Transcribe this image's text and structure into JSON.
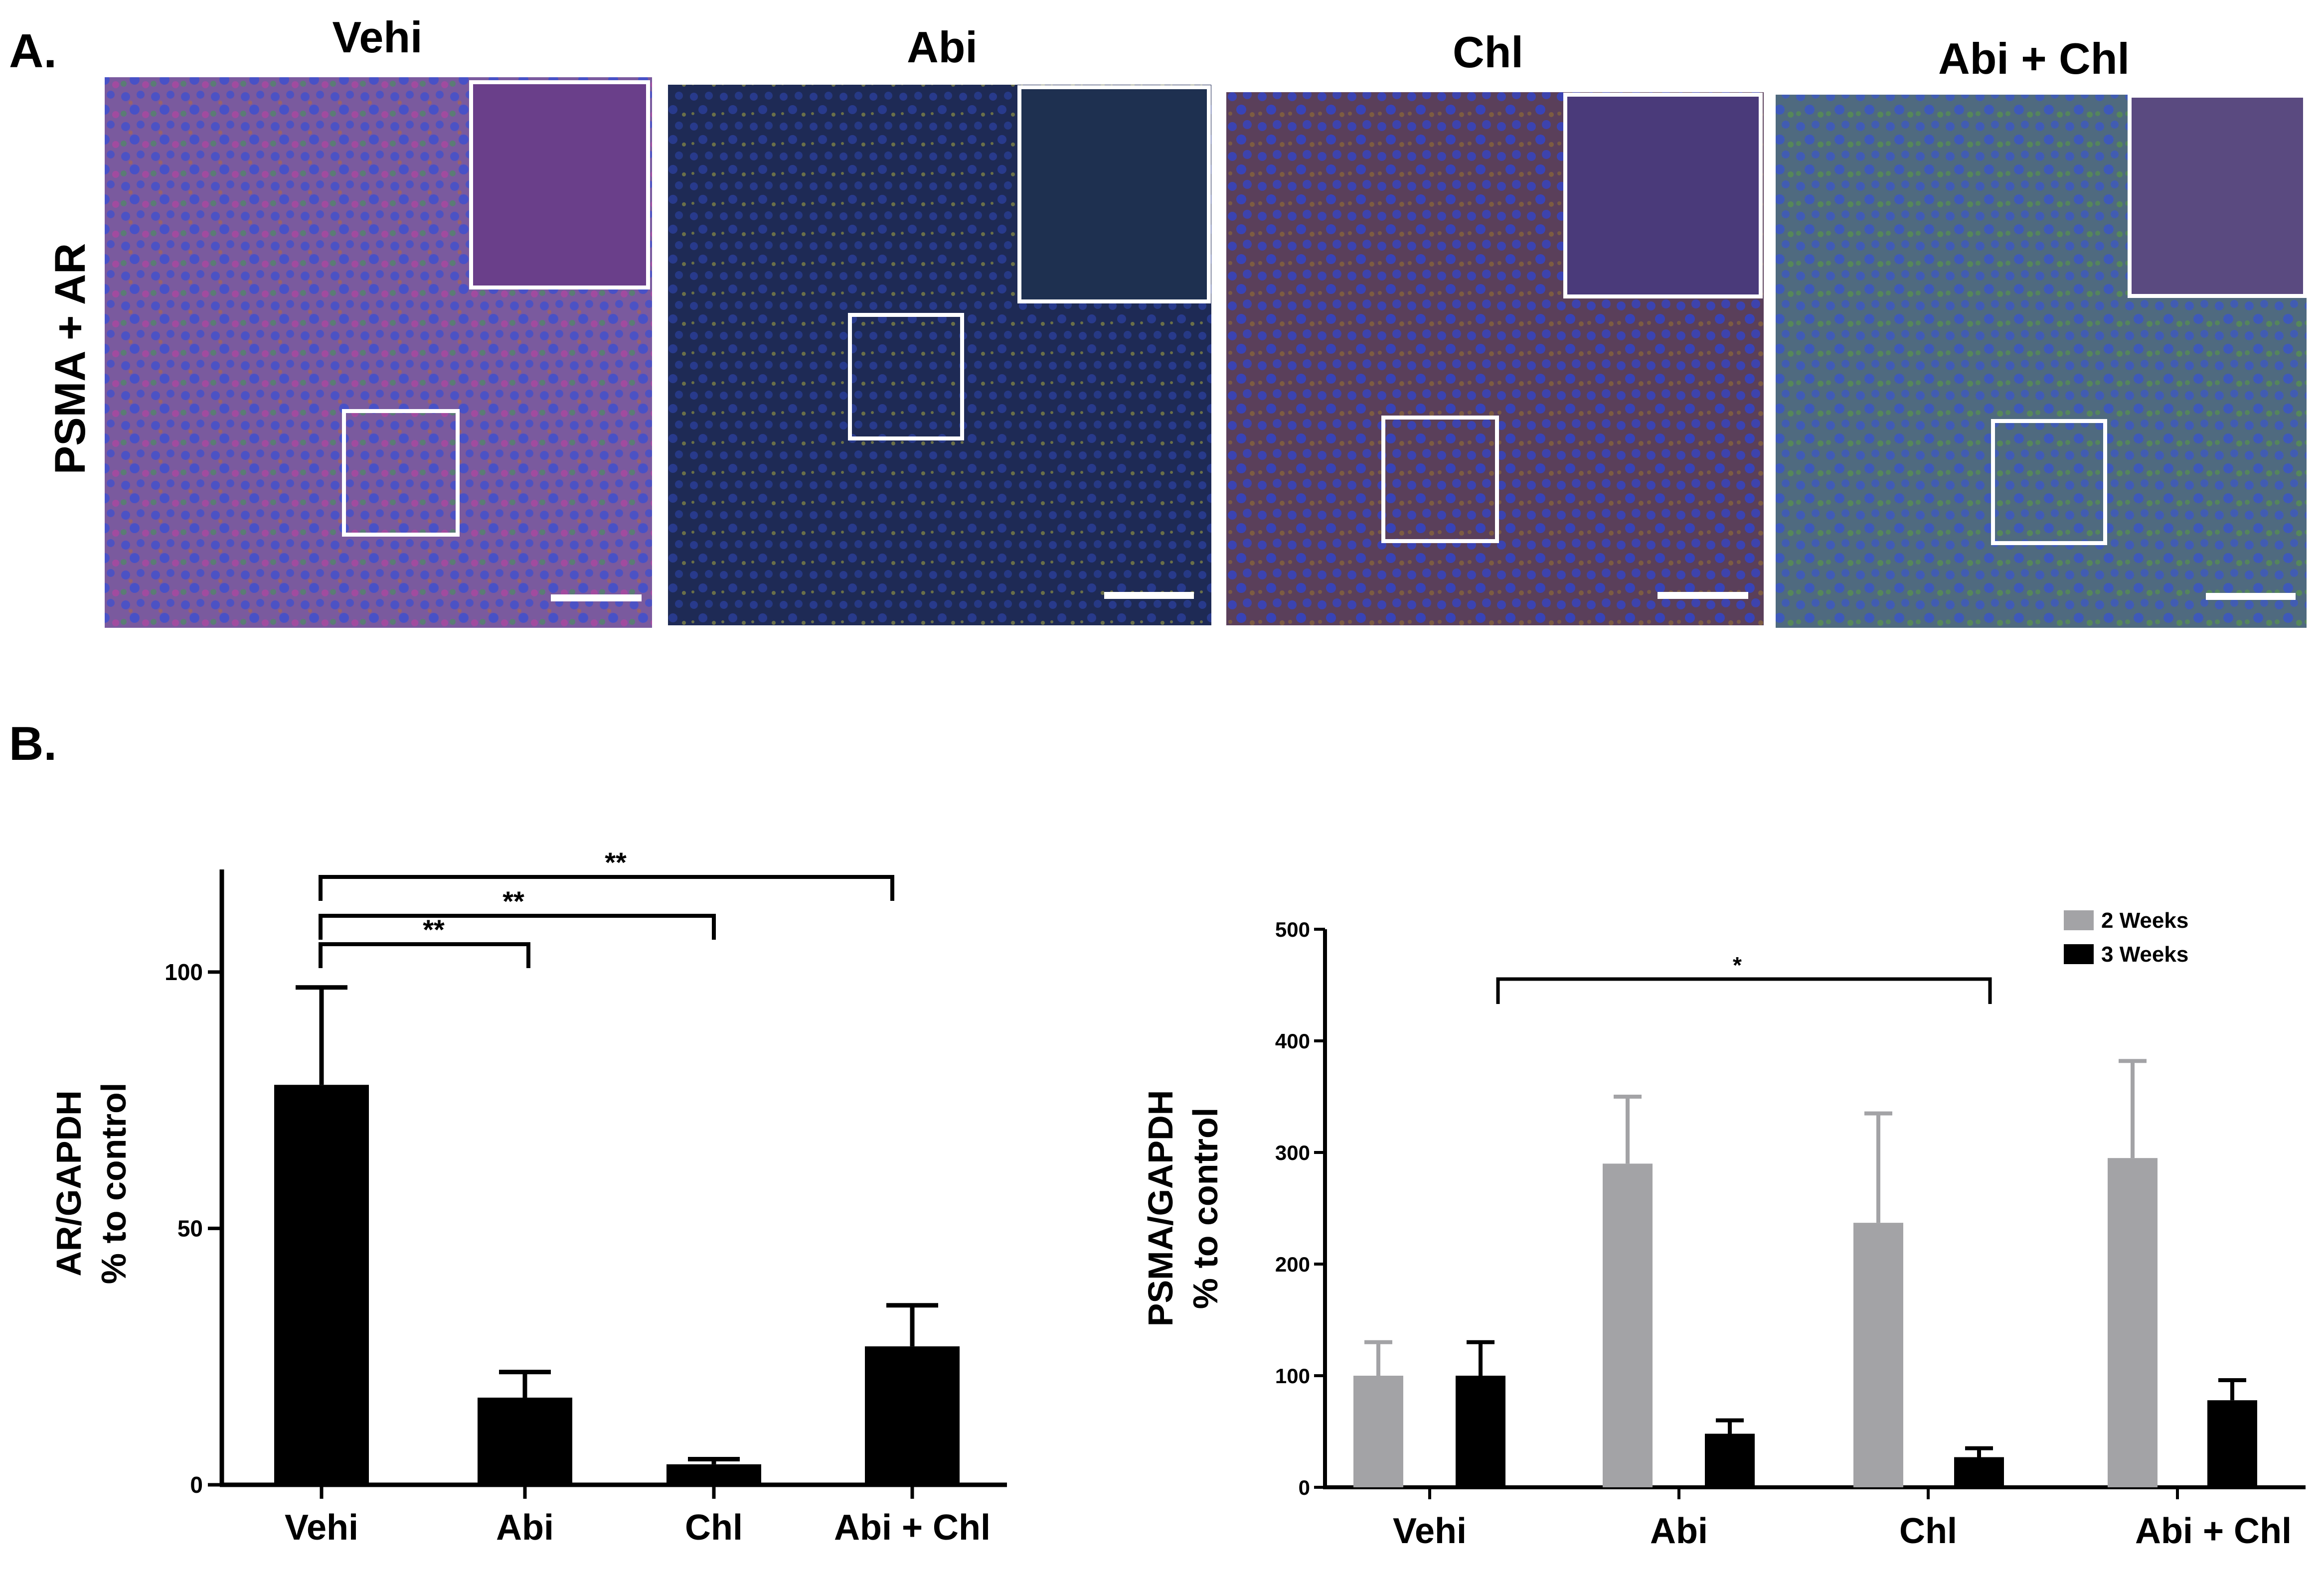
{
  "panel_a": {
    "letter": "A.",
    "row_label": "PSMA + AR",
    "images": [
      {
        "title": "Vehi",
        "tint": "#7a5a9e",
        "cells": "#3c4fd0"
      },
      {
        "title": "Abi",
        "tint": "#1e2a55",
        "cells": "#2a3f9a"
      },
      {
        "title": "Chl",
        "tint": "#5a3f5a",
        "cells": "#3344c8"
      },
      {
        "title": "Abi + Chl",
        "tint": "#4f6a7f",
        "cells": "#3a55c8"
      }
    ]
  },
  "panel_b": {
    "letter": "B."
  },
  "chart_data": [
    {
      "type": "bar",
      "categories": [
        "Vehi",
        "Abi",
        "Chl",
        "Abi + Chl"
      ],
      "values": [
        78,
        17,
        4,
        27
      ],
      "errors": [
        19,
        5,
        1,
        8
      ],
      "ylabel": [
        "AR/GAPDH",
        "% to control"
      ],
      "ylim": [
        0,
        120
      ],
      "yticks": [
        0,
        50,
        100
      ],
      "color": "#000000",
      "significance": [
        {
          "from": 0,
          "to": 1,
          "label": "**"
        },
        {
          "from": 0,
          "to": 2,
          "label": "**"
        },
        {
          "from": 0,
          "to": 3,
          "label": "**"
        }
      ]
    },
    {
      "type": "bar",
      "categories": [
        "Vehi",
        "Abi",
        "Chl",
        "Abi + Chl"
      ],
      "series": [
        {
          "name": "2 Weeks",
          "values": [
            100,
            290,
            237,
            295
          ],
          "errors": [
            30,
            60,
            98,
            87
          ],
          "color": "#a3a3a6"
        },
        {
          "name": "3 Weeks",
          "values": [
            100,
            48,
            27,
            78
          ],
          "errors": [
            30,
            12,
            8,
            18
          ],
          "color": "#000000"
        }
      ],
      "ylabel": [
        "PSMA/GAPDH",
        "% to control"
      ],
      "ylim": [
        0,
        500
      ],
      "yticks": [
        0,
        100,
        200,
        300,
        400,
        500
      ],
      "legend": "top-right",
      "significance": [
        {
          "from": 0,
          "to": 2,
          "label": "*"
        }
      ]
    }
  ]
}
